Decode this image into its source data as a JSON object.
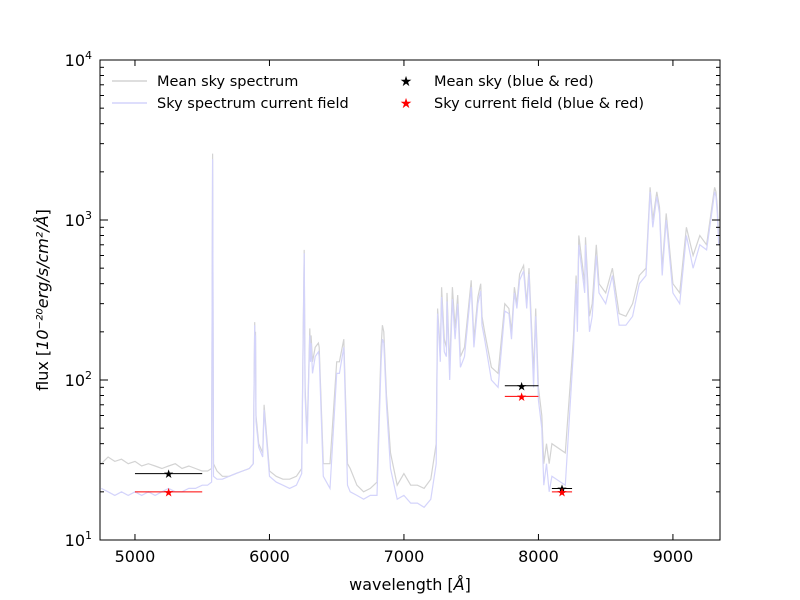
{
  "chart_data": {
    "type": "line",
    "x_axis": {
      "label_prefix": "wavelength [",
      "label_unit": "Å",
      "label_suffix": "]",
      "range": [
        4740,
        9350
      ],
      "ticks": [
        5000,
        6000,
        7000,
        8000,
        9000
      ],
      "tick_labels": [
        "5000",
        "6000",
        "7000",
        "8000",
        "9000"
      ]
    },
    "y_axis": {
      "label_prefix": "flux [",
      "label_unit": "10⁻²⁰erg/s/cm²/Å",
      "label_suffix": "]",
      "scale": "log",
      "range": [
        10,
        10000
      ],
      "ticks": [
        10,
        100,
        1000,
        10000
      ],
      "tick_labels": [
        {
          "base": "10",
          "exp": "1"
        },
        {
          "base": "10",
          "exp": "2"
        },
        {
          "base": "10",
          "exp": "3"
        },
        {
          "base": "10",
          "exp": "4"
        }
      ]
    },
    "grid": false,
    "legend_placement": "top",
    "legend": {
      "mean_spectrum": "Mean sky spectrum",
      "current_spectrum": "Sky spectrum current field",
      "mean_points": "Mean sky (blue & red)",
      "current_points": "Sky current field (blue & red)"
    },
    "colors": {
      "mean_spectrum": "#d3d3d3",
      "current_spectrum": "#d4d4fb",
      "mean_points": "#000000",
      "current_points": "#ff0000"
    },
    "series": [
      {
        "name": "Mean sky spectrum",
        "kind": "line",
        "x": [
          4750,
          4800,
          4850,
          4900,
          4950,
          5000,
          5050,
          5100,
          5150,
          5200,
          5250,
          5300,
          5350,
          5400,
          5450,
          5500,
          5540,
          5570,
          5577,
          5584,
          5610,
          5650,
          5700,
          5750,
          5800,
          5850,
          5880,
          5890,
          5893,
          5896,
          5900,
          5920,
          5950,
          5960,
          6000,
          6050,
          6100,
          6150,
          6200,
          6240,
          6250,
          6258,
          6265,
          6280,
          6300,
          6305,
          6310,
          6320,
          6340,
          6364,
          6370,
          6400,
          6450,
          6500,
          6520,
          6553,
          6560,
          6580,
          6600,
          6650,
          6700,
          6750,
          6800,
          6830,
          6840,
          6850,
          6870,
          6900,
          6950,
          7000,
          7050,
          7100,
          7150,
          7200,
          7240,
          7250,
          7270,
          7280,
          7300,
          7316,
          7320,
          7340,
          7360,
          7380,
          7400,
          7420,
          7450,
          7500,
          7520,
          7550,
          7571,
          7580,
          7600,
          7650,
          7700,
          7750,
          7780,
          7800,
          7821,
          7840,
          7860,
          7890,
          7913,
          7930,
          7964,
          7980,
          8000,
          8025,
          8040,
          8060,
          8080,
          8100,
          8200,
          8260,
          8280,
          8290,
          8300,
          8344,
          8350,
          8380,
          8400,
          8430,
          8450,
          8500,
          8550,
          8600,
          8650,
          8700,
          8750,
          8800,
          8830,
          8850,
          8880,
          8900,
          8920,
          8950,
          9000,
          9050,
          9100,
          9150,
          9200,
          9250,
          9300,
          9310,
          9320,
          9330,
          9340
        ],
        "y": [
          30,
          33,
          31,
          32,
          30,
          31,
          29,
          30,
          29,
          28,
          29,
          30,
          28,
          29,
          28,
          27,
          27,
          28,
          2600,
          30,
          27,
          25,
          25,
          26,
          27,
          28,
          30,
          230,
          150,
          200,
          60,
          40,
          35,
          70,
          27,
          25,
          24,
          24,
          25,
          28,
          180,
          650,
          90,
          45,
          210,
          150,
          190,
          130,
          160,
          170,
          160,
          30,
          30,
          130,
          130,
          180,
          110,
          30,
          28,
          22,
          20,
          21,
          23,
          160,
          220,
          200,
          80,
          35,
          22,
          26,
          22,
          22,
          21,
          24,
          40,
          280,
          150,
          380,
          180,
          160,
          350,
          120,
          380,
          210,
          340,
          140,
          160,
          420,
          180,
          330,
          400,
          250,
          200,
          120,
          110,
          300,
          280,
          200,
          380,
          300,
          460,
          520,
          300,
          500,
          110,
          280,
          90,
          60,
          30,
          40,
          30,
          40,
          35,
          180,
          450,
          250,
          800,
          400,
          780,
          250,
          300,
          700,
          400,
          350,
          500,
          260,
          250,
          300,
          450,
          500,
          1600,
          1000,
          1500,
          1200,
          500,
          1100,
          400,
          350,
          900,
          600,
          800,
          700,
          1400,
          1600,
          1500,
          1200,
          800
        ]
      },
      {
        "name": "Sky spectrum current field",
        "kind": "line",
        "x": [
          4750,
          4800,
          4850,
          4900,
          4950,
          5000,
          5050,
          5100,
          5150,
          5200,
          5250,
          5300,
          5350,
          5400,
          5450,
          5500,
          5540,
          5570,
          5577,
          5584,
          5610,
          5650,
          5700,
          5750,
          5800,
          5850,
          5880,
          5890,
          5893,
          5896,
          5900,
          5920,
          5950,
          5960,
          6000,
          6050,
          6100,
          6150,
          6200,
          6240,
          6250,
          6258,
          6265,
          6280,
          6300,
          6305,
          6310,
          6320,
          6340,
          6364,
          6370,
          6400,
          6450,
          6500,
          6520,
          6553,
          6560,
          6580,
          6600,
          6650,
          6700,
          6750,
          6800,
          6830,
          6840,
          6850,
          6870,
          6900,
          6950,
          7000,
          7050,
          7100,
          7150,
          7200,
          7240,
          7250,
          7270,
          7280,
          7300,
          7316,
          7320,
          7340,
          7360,
          7380,
          7400,
          7420,
          7450,
          7500,
          7520,
          7550,
          7571,
          7580,
          7600,
          7650,
          7700,
          7750,
          7780,
          7800,
          7821,
          7840,
          7860,
          7890,
          7913,
          7930,
          7964,
          7980,
          8000,
          8025,
          8040,
          8060,
          8080,
          8100,
          8200,
          8260,
          8280,
          8290,
          8300,
          8344,
          8350,
          8380,
          8400,
          8430,
          8450,
          8500,
          8550,
          8600,
          8650,
          8700,
          8750,
          8800,
          8830,
          8850,
          8880,
          8900,
          8920,
          8950,
          9000,
          9050,
          9100,
          9150,
          9200,
          9250,
          9300,
          9310,
          9320,
          9330,
          9340
        ],
        "y": [
          21,
          20,
          19,
          20,
          19,
          20,
          19,
          20,
          19,
          20,
          21,
          20,
          20,
          21,
          21,
          22,
          22,
          23,
          2400,
          25,
          24,
          24,
          25,
          26,
          27,
          28,
          30,
          220,
          140,
          190,
          55,
          38,
          33,
          65,
          25,
          23,
          22,
          21,
          22,
          26,
          160,
          620,
          80,
          40,
          190,
          130,
          170,
          110,
          140,
          150,
          140,
          25,
          21,
          110,
          110,
          160,
          95,
          22,
          20,
          19,
          18,
          19,
          19,
          130,
          180,
          170,
          70,
          28,
          18,
          19,
          17,
          17,
          16,
          18,
          30,
          260,
          130,
          330,
          150,
          140,
          310,
          100,
          320,
          180,
          300,
          120,
          140,
          380,
          160,
          300,
          360,
          220,
          180,
          100,
          90,
          270,
          260,
          180,
          350,
          280,
          420,
          480,
          280,
          460,
          90,
          250,
          75,
          50,
          22,
          30,
          20,
          25,
          22,
          150,
          400,
          200,
          700,
          350,
          700,
          200,
          250,
          600,
          350,
          300,
          450,
          220,
          220,
          250,
          400,
          450,
          1500,
          900,
          1400,
          1100,
          450,
          1000,
          350,
          300,
          800,
          500,
          700,
          650,
          1300,
          1500,
          1400,
          1100,
          700
        ]
      }
    ],
    "points": [
      {
        "series": "Mean sky (blue & red)",
        "x": 5250,
        "y": 26,
        "x_range": [
          5000,
          5500
        ]
      },
      {
        "series": "Sky current field (blue & red)",
        "x": 5250,
        "y": 20,
        "x_range": [
          5000,
          5500
        ]
      },
      {
        "series": "Mean sky (blue & red)",
        "x": 7875,
        "y": 92,
        "x_range": [
          7750,
          8000
        ]
      },
      {
        "series": "Sky current field (blue & red)",
        "x": 7875,
        "y": 79,
        "x_range": [
          7750,
          8000
        ]
      },
      {
        "series": "Mean sky (blue & red)",
        "x": 8175,
        "y": 21,
        "x_range": [
          8100,
          8250
        ]
      },
      {
        "series": "Sky current field (blue & red)",
        "x": 8175,
        "y": 20,
        "x_range": [
          8100,
          8250
        ]
      }
    ]
  }
}
